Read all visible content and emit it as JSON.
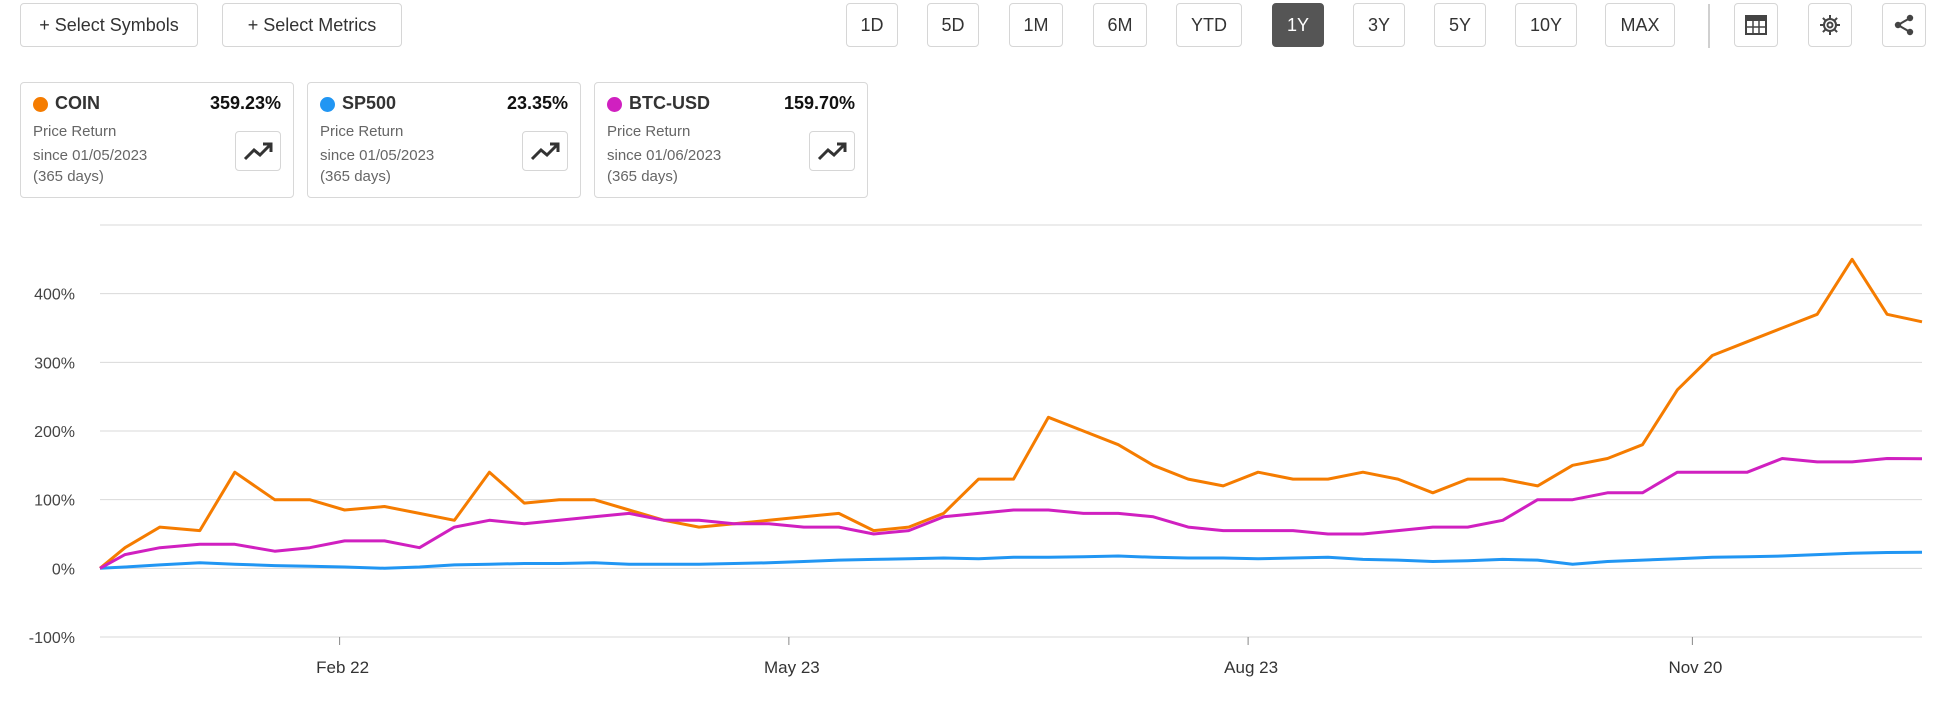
{
  "toolbar": {
    "select_symbols": "+ Select Symbols",
    "select_metrics": "+ Select Metrics",
    "ranges": [
      "1D",
      "5D",
      "1M",
      "6M",
      "YTD",
      "1Y",
      "3Y",
      "5Y",
      "10Y",
      "MAX"
    ],
    "active_range": "1Y",
    "icons": [
      "table-icon",
      "gear-icon",
      "share-icon"
    ]
  },
  "cards": [
    {
      "symbol": "COIN",
      "return": "359.23%",
      "label": "Price Return",
      "since": "since 01/05/2023",
      "days": "(365 days)",
      "color": "#f57c00"
    },
    {
      "symbol": "SP500",
      "return": "23.35%",
      "label": "Price Return",
      "since": "since 01/05/2023",
      "days": "(365 days)",
      "color": "#2196f3"
    },
    {
      "symbol": "BTC-USD",
      "return": "159.70%",
      "label": "Price Return",
      "since": "since 01/06/2023",
      "days": "(365 days)",
      "color": "#d020c0"
    }
  ],
  "chart_data": {
    "type": "line",
    "ylim": [
      -100,
      500
    ],
    "yticks": [
      "-100%",
      "0%",
      "100%",
      "200%",
      "300%",
      "400%"
    ],
    "ytick_values": [
      -100,
      0,
      100,
      200,
      300,
      400
    ],
    "xticks": [
      "Feb 22",
      "May 23",
      "Aug 23",
      "Nov 20"
    ],
    "xtick_dates": [
      "2023-02-22",
      "2023-05-23",
      "2023-08-23",
      "2023-11-20"
    ],
    "grid": true,
    "x": [
      "2023-01-05",
      "2023-01-10",
      "2023-01-17",
      "2023-01-25",
      "2023-02-01",
      "2023-02-09",
      "2023-02-16",
      "2023-02-23",
      "2023-03-03",
      "2023-03-10",
      "2023-03-17",
      "2023-03-24",
      "2023-03-31",
      "2023-04-07",
      "2023-04-14",
      "2023-04-21",
      "2023-04-28",
      "2023-05-05",
      "2023-05-12",
      "2023-05-19",
      "2023-05-26",
      "2023-06-02",
      "2023-06-09",
      "2023-06-16",
      "2023-06-23",
      "2023-06-30",
      "2023-07-07",
      "2023-07-14",
      "2023-07-21",
      "2023-07-28",
      "2023-08-04",
      "2023-08-11",
      "2023-08-18",
      "2023-08-25",
      "2023-09-01",
      "2023-09-08",
      "2023-09-15",
      "2023-09-22",
      "2023-09-29",
      "2023-10-06",
      "2023-10-13",
      "2023-10-20",
      "2023-10-27",
      "2023-11-03",
      "2023-11-10",
      "2023-11-17",
      "2023-11-24",
      "2023-12-01",
      "2023-12-08",
      "2023-12-15",
      "2023-12-22",
      "2023-12-29",
      "2024-01-05"
    ],
    "series": [
      {
        "name": "COIN",
        "color": "#f57c00",
        "values": [
          0,
          30,
          60,
          55,
          140,
          100,
          100,
          85,
          90,
          80,
          70,
          140,
          95,
          100,
          100,
          85,
          70,
          60,
          65,
          70,
          75,
          80,
          55,
          60,
          80,
          130,
          130,
          220,
          200,
          180,
          150,
          130,
          120,
          140,
          130,
          130,
          140,
          130,
          110,
          130,
          130,
          120,
          150,
          160,
          180,
          260,
          310,
          330,
          350,
          370,
          450,
          370,
          359
        ]
      },
      {
        "name": "SP500",
        "color": "#2196f3",
        "values": [
          0,
          2,
          5,
          8,
          6,
          4,
          3,
          2,
          0,
          2,
          5,
          6,
          7,
          7,
          8,
          6,
          6,
          6,
          7,
          8,
          10,
          12,
          13,
          14,
          15,
          14,
          16,
          16,
          17,
          18,
          16,
          15,
          15,
          14,
          15,
          16,
          13,
          12,
          10,
          11,
          13,
          12,
          6,
          10,
          12,
          14,
          16,
          17,
          18,
          20,
          22,
          23,
          23.35
        ]
      },
      {
        "name": "BTC-USD",
        "color": "#d020c0",
        "values": [
          0,
          20,
          30,
          35,
          35,
          25,
          30,
          40,
          40,
          30,
          60,
          70,
          65,
          70,
          75,
          80,
          70,
          70,
          65,
          65,
          60,
          60,
          50,
          55,
          75,
          80,
          85,
          85,
          80,
          80,
          75,
          60,
          55,
          55,
          55,
          50,
          50,
          55,
          60,
          60,
          70,
          100,
          100,
          110,
          110,
          140,
          140,
          140,
          160,
          155,
          155,
          160,
          159.7
        ]
      }
    ]
  }
}
